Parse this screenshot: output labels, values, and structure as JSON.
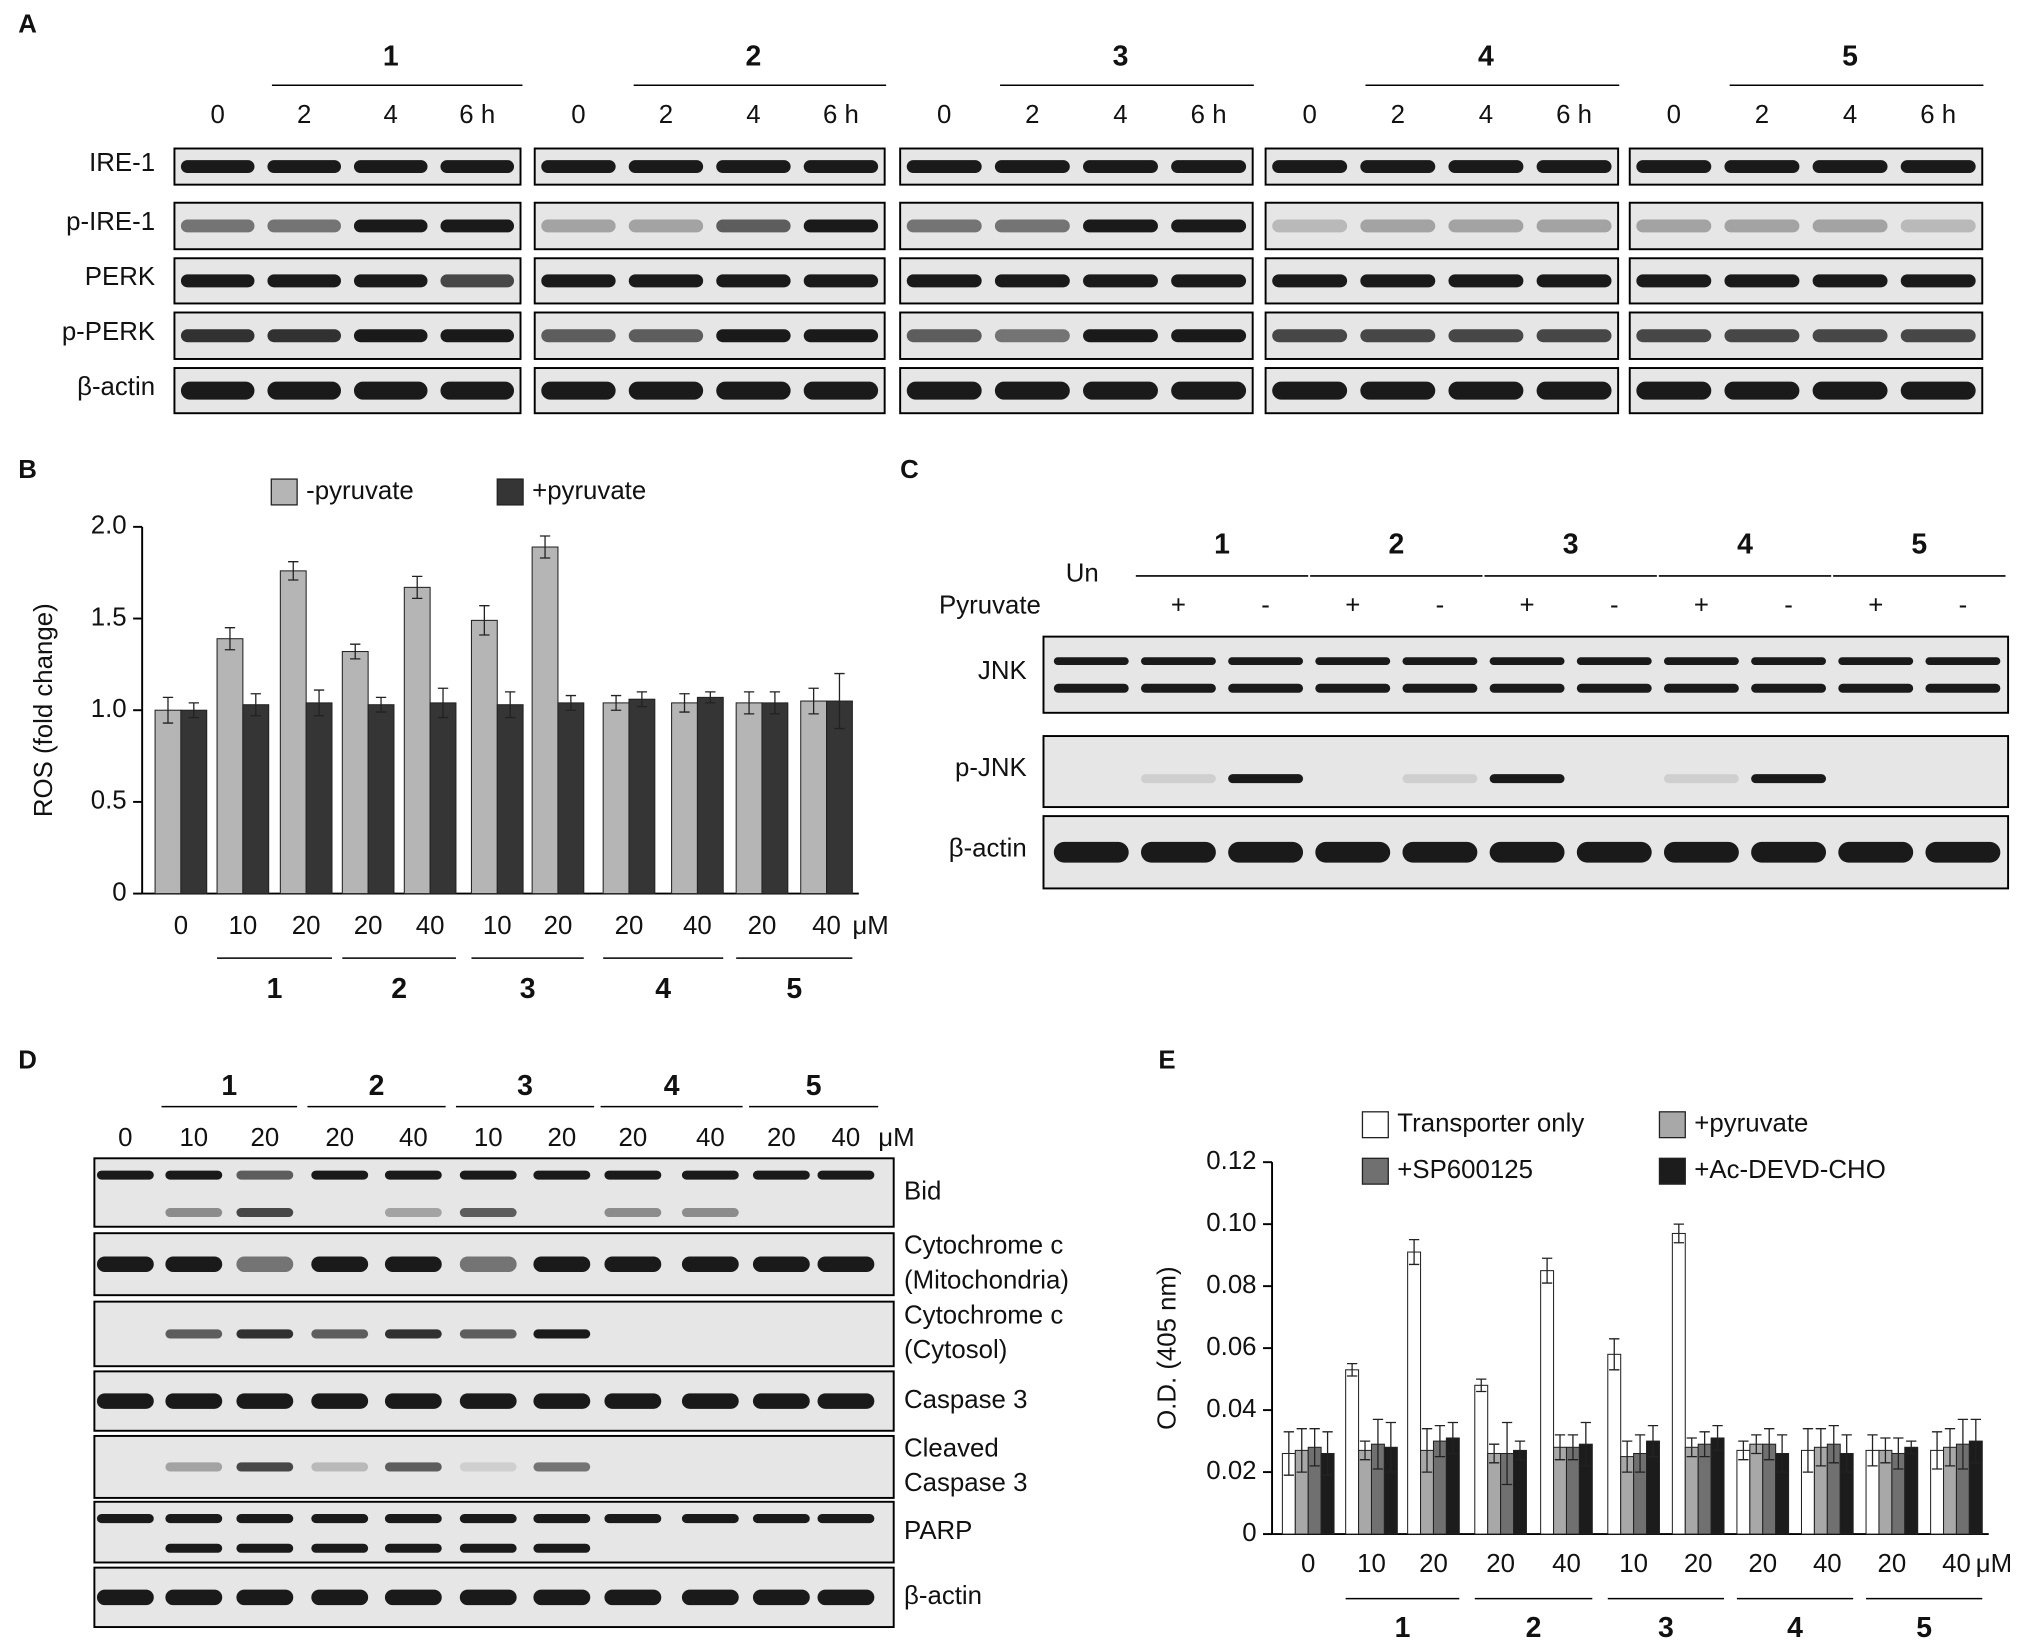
{
  "panel_labels": [
    "A",
    "B",
    "C",
    "D",
    "E"
  ],
  "panel_a": {
    "compounds": [
      "1",
      "2",
      "3",
      "4",
      "5"
    ],
    "lanes": [
      "0",
      "2",
      "4",
      "6 h"
    ],
    "rows": [
      "IRE-1",
      "p-IRE-1",
      "PERK",
      "p-PERK",
      "β-actin"
    ]
  },
  "panel_c": {
    "compounds": [
      "1",
      "2",
      "3",
      "4",
      "5"
    ],
    "untreated": "Un",
    "pyruvate_label": "Pyruvate",
    "pyruvate_states": [
      "+",
      "-"
    ],
    "rows": [
      "JNK",
      "p-JNK",
      "β-actin"
    ]
  },
  "panel_d": {
    "compounds": [
      "1",
      "2",
      "3",
      "4",
      "5"
    ],
    "lanes": [
      "0",
      "10",
      "20",
      "20",
      "40",
      "10",
      "20",
      "20",
      "40",
      "20",
      "40"
    ],
    "unit": "μM",
    "rows": [
      [
        "Bid"
      ],
      [
        "Cytochrome c",
        "(Mitochondria)"
      ],
      [
        "Cytochrome c",
        "(Cytosol)"
      ],
      [
        "Caspase 3"
      ],
      [
        "Cleaved",
        "Caspase 3"
      ],
      [
        "PARP"
      ],
      [
        "β-actin"
      ]
    ]
  },
  "chart_data": [
    {
      "type": "bar",
      "ylabel": "ROS (fold change)",
      "categories": [
        "0",
        "10",
        "20",
        "20",
        "40",
        "10",
        "20",
        "20",
        "40",
        "20",
        "40"
      ],
      "x_unit": "μM",
      "groups": [
        "1",
        "2",
        "3",
        "4",
        "5"
      ],
      "series": [
        {
          "name": "-pyruvate",
          "color": "#b5b5b5",
          "values": [
            1.0,
            1.39,
            1.76,
            1.32,
            1.67,
            1.49,
            1.89,
            1.04,
            1.04,
            1.04,
            1.05
          ],
          "errors": [
            0.07,
            0.06,
            0.05,
            0.04,
            0.06,
            0.08,
            0.06,
            0.04,
            0.05,
            0.06,
            0.07
          ]
        },
        {
          "name": "+pyruvate",
          "color": "#353535",
          "values": [
            1.0,
            1.03,
            1.04,
            1.03,
            1.04,
            1.03,
            1.04,
            1.06,
            1.07,
            1.04,
            1.05
          ],
          "errors": [
            0.04,
            0.06,
            0.07,
            0.04,
            0.08,
            0.07,
            0.04,
            0.04,
            0.03,
            0.06,
            0.15
          ]
        }
      ],
      "ylim": [
        0,
        2
      ],
      "yticks": [
        0,
        0.5,
        {
          "value": 1,
          "label": "1.0"
        },
        1.5,
        {
          "value": 2,
          "label": "2.0"
        }
      ]
    },
    {
      "type": "bar",
      "ylabel": "O.D. (405 nm)",
      "categories": [
        "0",
        "10",
        "20",
        "20",
        "40",
        "10",
        "20",
        "20",
        "40",
        "20",
        "40"
      ],
      "x_unit": "μM",
      "groups": [
        "1",
        "2",
        "3",
        "4",
        "5"
      ],
      "series": [
        {
          "name": "Transporter only",
          "color": "#ffffff",
          "values": [
            0.026,
            0.053,
            0.091,
            0.048,
            0.085,
            0.058,
            0.097,
            0.027,
            0.027,
            0.027,
            0.027
          ],
          "errors": [
            0.007,
            0.002,
            0.004,
            0.002,
            0.004,
            0.005,
            0.003,
            0.003,
            0.007,
            0.005,
            0.006
          ]
        },
        {
          "name": "+pyruvate",
          "color": "#a8a8a8",
          "values": [
            0.027,
            0.027,
            0.027,
            0.026,
            0.028,
            0.025,
            0.028,
            0.029,
            0.028,
            0.027,
            0.028
          ],
          "errors": [
            0.007,
            0.003,
            0.007,
            0.003,
            0.004,
            0.005,
            0.003,
            0.003,
            0.006,
            0.004,
            0.006
          ]
        },
        {
          "name": "+SP600125",
          "color": "#707070",
          "values": [
            0.028,
            0.029,
            0.03,
            0.026,
            0.028,
            0.026,
            0.029,
            0.029,
            0.029,
            0.026,
            0.029
          ],
          "errors": [
            0.006,
            0.008,
            0.005,
            0.01,
            0.004,
            0.006,
            0.004,
            0.005,
            0.006,
            0.005,
            0.008
          ]
        },
        {
          "name": "+Ac-DEVD-CHO",
          "color": "#1c1c1c",
          "values": [
            0.026,
            0.028,
            0.031,
            0.027,
            0.029,
            0.03,
            0.031,
            0.026,
            0.026,
            0.028,
            0.03
          ],
          "errors": [
            0.007,
            0.008,
            0.005,
            0.003,
            0.007,
            0.005,
            0.004,
            0.006,
            0.006,
            0.002,
            0.007
          ]
        }
      ],
      "ylim": [
        0,
        0.12
      ],
      "yticks": [
        0,
        0.02,
        0.04,
        0.06,
        0.08,
        {
          "value": 0.1,
          "label": "0.10"
        },
        0.12
      ]
    }
  ]
}
